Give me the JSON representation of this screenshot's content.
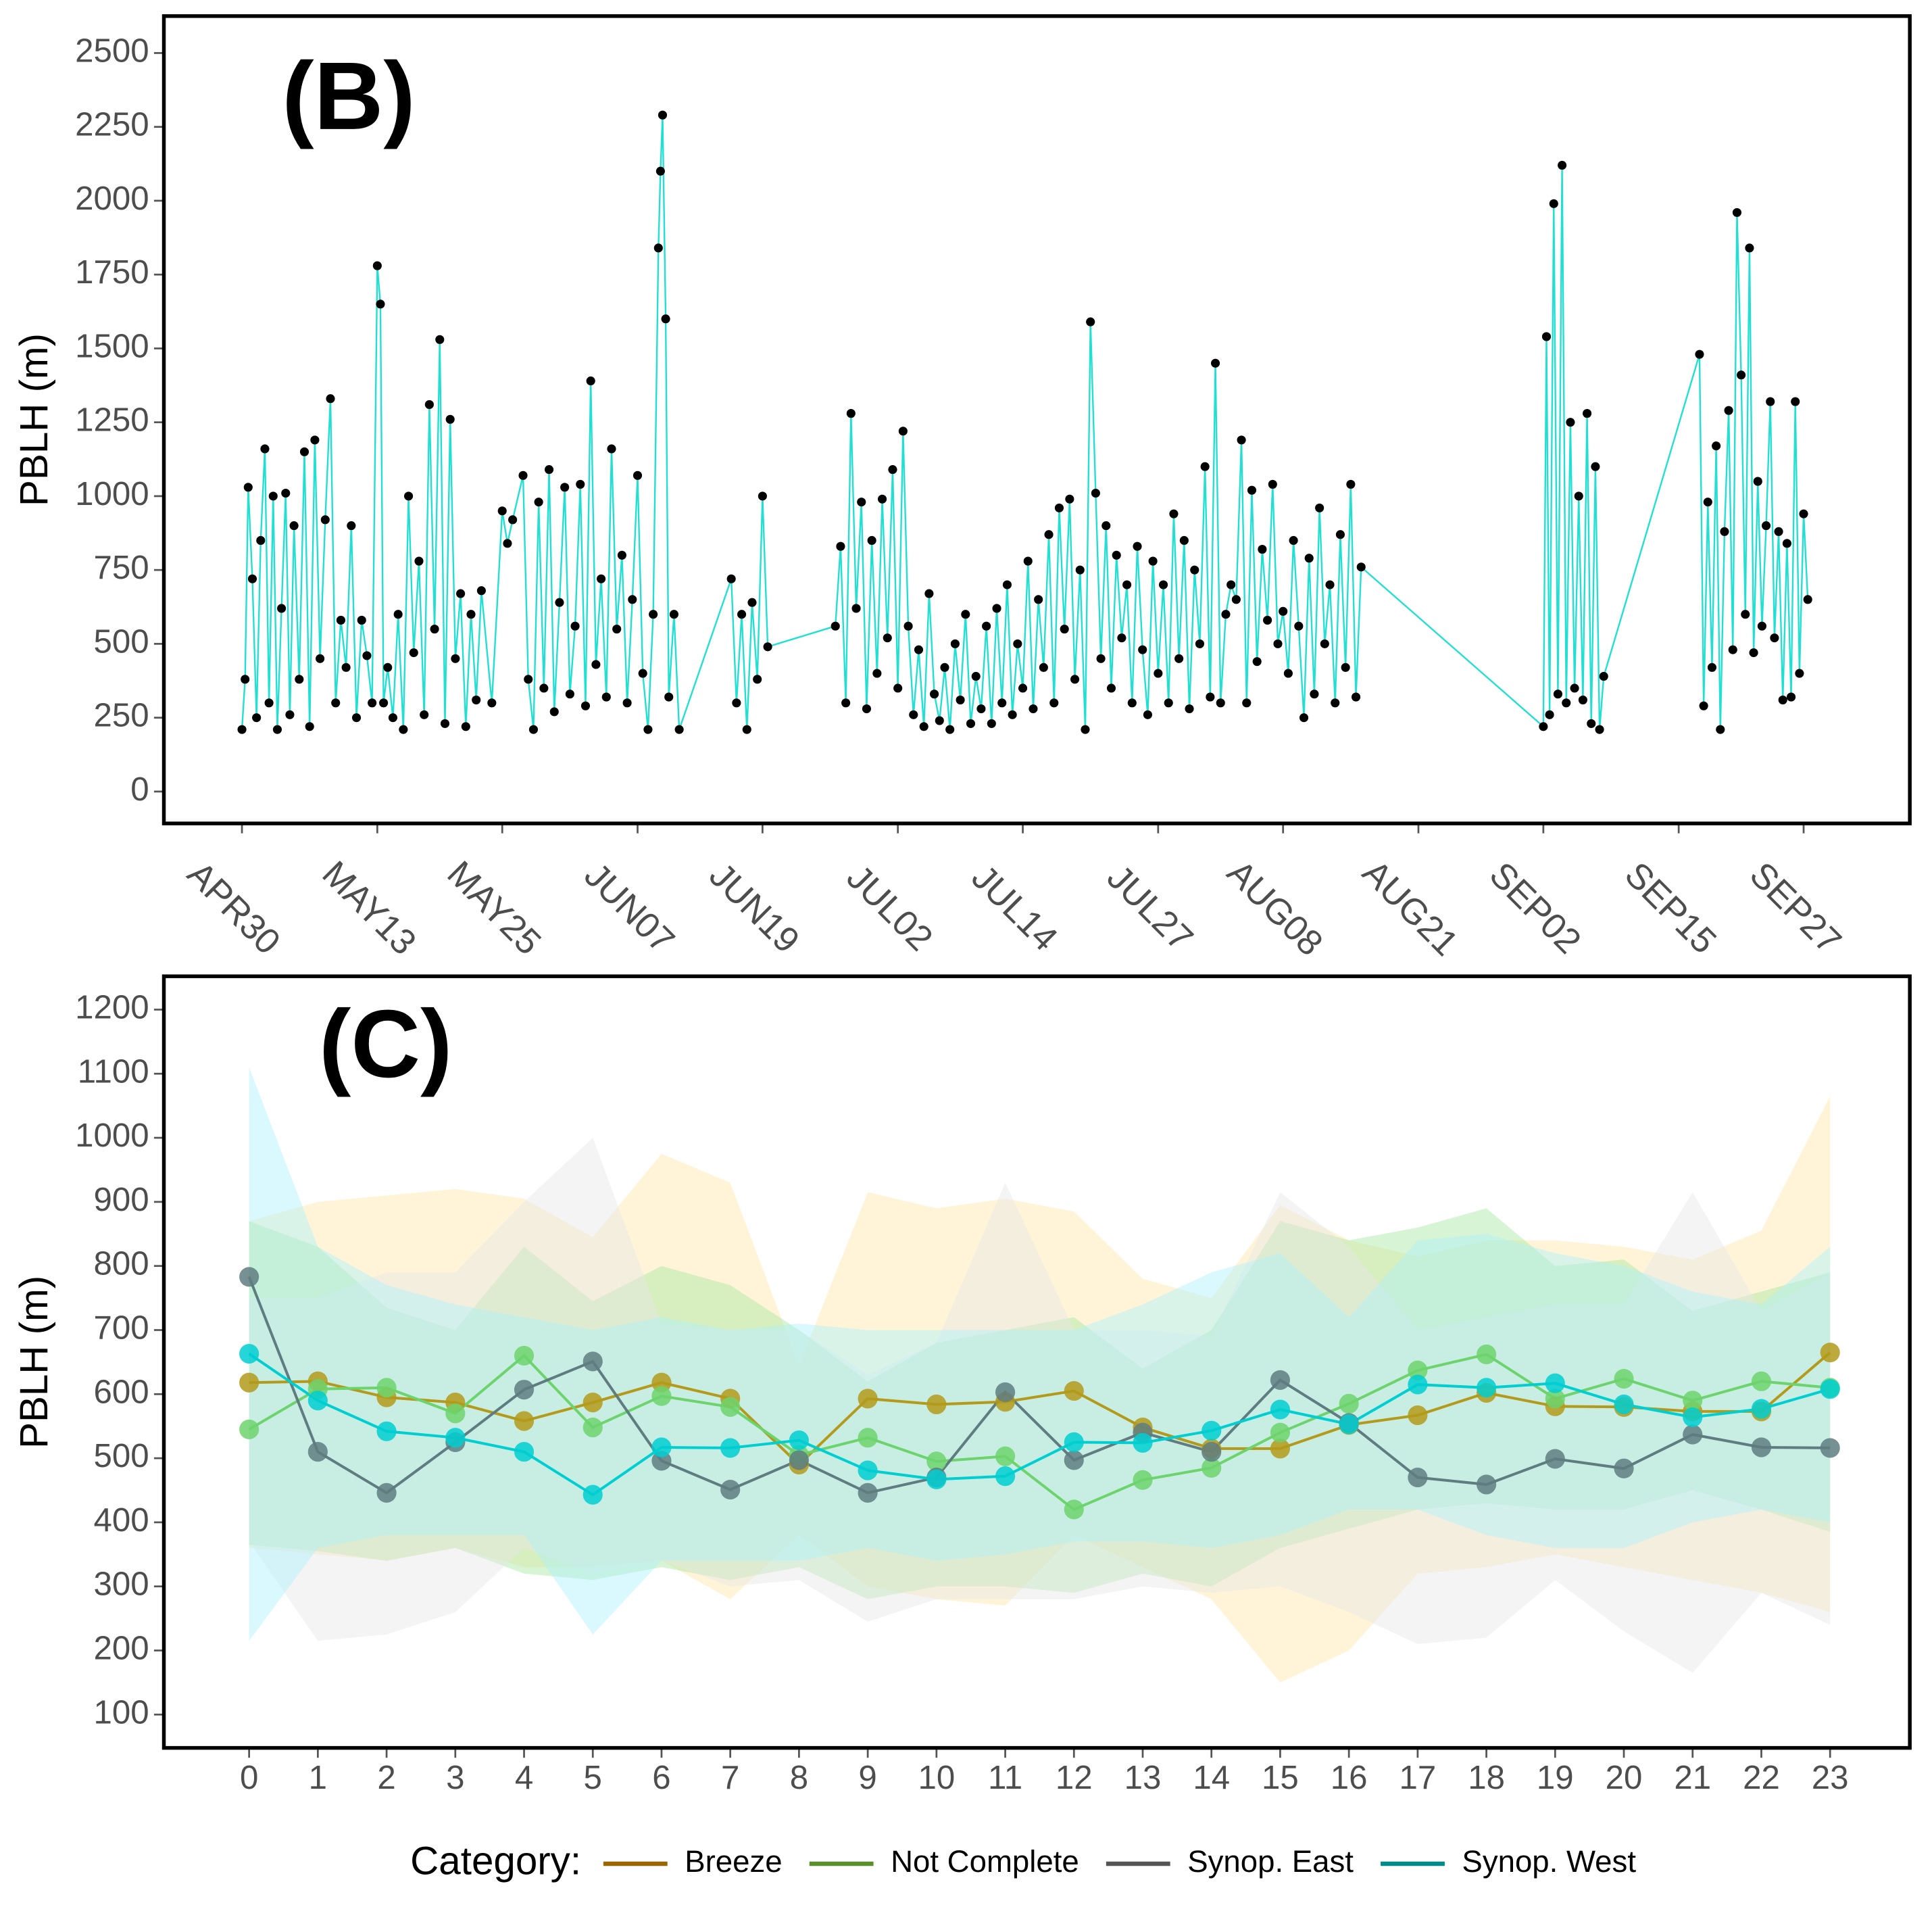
{
  "chart_data": [
    {
      "type": "line",
      "annotation": "(B)",
      "y_label": "PBLH (m)",
      "xlim": [
        -7.5,
        160.2
      ],
      "ylim": [
        -108,
        2625
      ],
      "xticks": [
        {
          "value": 0,
          "label": "APR30"
        },
        {
          "value": 13,
          "label": "MAY13"
        },
        {
          "value": 25,
          "label": "MAY25"
        },
        {
          "value": 38,
          "label": "JUN07"
        },
        {
          "value": 50,
          "label": "JUN19"
        },
        {
          "value": 63,
          "label": "JUL02"
        },
        {
          "value": 75,
          "label": "JUL14"
        },
        {
          "value": 88,
          "label": "JUL27"
        },
        {
          "value": 100,
          "label": "AUG08"
        },
        {
          "value": 113,
          "label": "AUG21"
        },
        {
          "value": 125,
          "label": "SEP02"
        },
        {
          "value": 138,
          "label": "SEP15"
        },
        {
          "value": 150,
          "label": "SEP27"
        }
      ],
      "yticks": [
        0,
        250,
        500,
        750,
        1000,
        1250,
        1500,
        1750,
        2000,
        2250,
        2500
      ],
      "x": [
        0,
        0.3,
        0.6,
        1,
        1.4,
        1.8,
        2.2,
        2.6,
        3,
        3.4,
        3.8,
        4.2,
        4.6,
        5,
        5.5,
        6,
        6.5,
        7,
        7.5,
        8,
        8.5,
        9,
        9.5,
        10,
        10.5,
        11,
        11.5,
        12,
        12.5,
        13,
        13.3,
        13.6,
        14,
        14.5,
        15,
        15.5,
        16,
        16.5,
        17,
        17.5,
        18,
        18.5,
        19,
        19.5,
        20,
        20.5,
        21,
        21.5,
        22,
        22.5,
        23,
        24,
        25,
        25.5,
        26,
        27,
        27.5,
        28,
        28.5,
        29,
        29.5,
        30,
        30.5,
        31,
        31.5,
        32,
        32.5,
        33,
        33.5,
        34,
        34.5,
        35,
        35.5,
        36,
        36.5,
        37,
        37.5,
        38,
        38.5,
        39,
        39.5,
        40,
        40.2,
        40.4,
        40.7,
        41,
        41.5,
        42,
        47,
        47.5,
        48,
        48.5,
        49,
        49.5,
        50,
        50.5,
        57,
        57.5,
        58,
        58.5,
        59,
        59.5,
        60,
        60.5,
        61,
        61.5,
        62,
        62.5,
        63,
        63.5,
        64,
        64.5,
        65,
        65.5,
        66,
        66.5,
        67,
        67.5,
        68,
        68.5,
        69,
        69.5,
        70,
        70.5,
        71,
        71.5,
        72,
        72.5,
        73,
        73.5,
        74,
        74.5,
        75,
        75.5,
        76,
        76.5,
        77,
        77.5,
        78,
        78.5,
        79,
        79.5,
        80,
        80.5,
        81,
        81.5,
        82,
        82.5,
        83,
        83.5,
        84,
        84.5,
        85,
        85.5,
        86,
        86.5,
        87,
        87.5,
        88,
        88.5,
        89,
        89.5,
        90,
        90.5,
        91,
        91.5,
        92,
        92.5,
        93,
        93.5,
        94,
        94.5,
        95,
        95.5,
        96,
        96.5,
        97,
        97.5,
        98,
        98.5,
        99,
        99.5,
        100,
        100.5,
        101,
        101.5,
        102,
        102.5,
        103,
        103.5,
        104,
        104.5,
        105,
        105.5,
        106,
        106.5,
        107,
        107.5,
        125,
        125.3,
        125.6,
        126,
        126.4,
        126.8,
        127.2,
        127.6,
        128,
        128.4,
        128.8,
        129.2,
        129.6,
        130,
        130.4,
        130.8,
        140,
        140.4,
        140.8,
        141.2,
        141.6,
        142,
        142.4,
        142.8,
        143.2,
        143.6,
        144,
        144.4,
        144.8,
        145.2,
        145.6,
        146,
        146.4,
        146.8,
        147.2,
        147.6,
        148,
        148.4,
        148.8,
        149.2,
        149.6,
        150,
        150.4
      ],
      "series": [
        {
          "color": "#1fe0d2",
          "marker_color": "#000000",
          "values": [
            210,
            380,
            1030,
            720,
            250,
            850,
            1160,
            300,
            1000,
            210,
            620,
            1010,
            260,
            900,
            380,
            1150,
            220,
            1190,
            450,
            920,
            1330,
            300,
            580,
            420,
            900,
            250,
            580,
            460,
            300,
            1780,
            1650,
            300,
            420,
            250,
            600,
            210,
            1000,
            470,
            780,
            260,
            1310,
            550,
            1530,
            230,
            1260,
            450,
            670,
            220,
            600,
            310,
            680,
            300,
            950,
            840,
            920,
            1070,
            380,
            210,
            980,
            350,
            1090,
            270,
            640,
            1030,
            330,
            560,
            1040,
            290,
            1390,
            430,
            720,
            320,
            1160,
            550,
            800,
            300,
            650,
            1070,
            400,
            210,
            600,
            1840,
            2100,
            2290,
            1600,
            320,
            600,
            210,
            720,
            300,
            600,
            210,
            640,
            380,
            1000,
            490,
            560,
            830,
            300,
            1280,
            620,
            980,
            280,
            850,
            400,
            990,
            520,
            1090,
            350,
            1220,
            560,
            260,
            480,
            220,
            670,
            330,
            240,
            420,
            210,
            500,
            310,
            600,
            230,
            390,
            280,
            560,
            230,
            620,
            300,
            700,
            260,
            500,
            350,
            780,
            280,
            650,
            420,
            870,
            300,
            960,
            550,
            990,
            380,
            750,
            210,
            1590,
            1010,
            450,
            900,
            350,
            800,
            520,
            700,
            300,
            830,
            480,
            260,
            780,
            400,
            700,
            300,
            940,
            450,
            850,
            280,
            750,
            500,
            1100,
            320,
            1450,
            300,
            600,
            700,
            650,
            1190,
            300,
            1020,
            440,
            820,
            580,
            1040,
            500,
            610,
            400,
            850,
            560,
            250,
            790,
            330,
            960,
            500,
            700,
            300,
            870,
            420,
            1040,
            320,
            760,
            220,
            1540,
            260,
            1990,
            330,
            2120,
            300,
            1250,
            350,
            1000,
            310,
            1280,
            230,
            1100,
            210,
            390,
            1480,
            290,
            980,
            420,
            1170,
            210,
            880,
            1290,
            480,
            1960,
            1410,
            600,
            1840,
            470,
            1050,
            560,
            900,
            1320,
            520,
            880,
            310,
            840,
            320,
            1320,
            400,
            940,
            650
          ]
        }
      ]
    },
    {
      "type": "line",
      "annotation": "(C)",
      "y_label": "PBLH (m)",
      "legend_title": "Category:",
      "xlim": [
        -1.24,
        24.16
      ],
      "ylim": [
        48,
        1252
      ],
      "xticks": [
        0,
        1,
        2,
        3,
        4,
        5,
        6,
        7,
        8,
        9,
        10,
        11,
        12,
        13,
        14,
        15,
        16,
        17,
        18,
        19,
        20,
        21,
        22,
        23
      ],
      "yticks": [
        100,
        200,
        300,
        400,
        500,
        600,
        700,
        800,
        900,
        1000,
        1100,
        1200
      ],
      "x": [
        0,
        1,
        2,
        3,
        4,
        5,
        6,
        7,
        8,
        9,
        10,
        11,
        12,
        13,
        14,
        15,
        16,
        17,
        18,
        19,
        20,
        21,
        22,
        23
      ],
      "series": [
        {
          "name": "Breeze",
          "color": "#b39a1a",
          "legend_color": "#996600",
          "band_color": "#ffe7a8",
          "values": [
            618,
            620,
            595,
            587,
            558,
            587,
            618,
            593,
            490,
            593,
            584,
            588,
            605,
            548,
            515,
            515,
            552,
            567,
            602,
            581,
            580,
            573,
            573,
            665
          ],
          "low": [
            360,
            350,
            340,
            360,
            330,
            330,
            340,
            280,
            380,
            300,
            280,
            270,
            380,
            330,
            280,
            150,
            200,
            320,
            330,
            350,
            330,
            310,
            290,
            260
          ],
          "high": [
            870,
            900,
            910,
            920,
            905,
            845,
            975,
            930,
            645,
            915,
            890,
            905,
            885,
            780,
            750,
            895,
            840,
            815,
            840,
            840,
            830,
            810,
            855,
            1065
          ]
        },
        {
          "name": "Not Complete",
          "color": "#6dd36d",
          "legend_color": "#5b8f2b",
          "band_color": "#a6e6a0",
          "values": [
            545,
            608,
            610,
            570,
            660,
            548,
            597,
            580,
            505,
            532,
            495,
            503,
            420,
            466,
            485,
            540,
            585,
            637,
            662,
            593,
            624,
            590,
            620,
            610
          ],
          "low": [
            365,
            355,
            340,
            360,
            320,
            310,
            330,
            310,
            330,
            280,
            300,
            300,
            290,
            320,
            300,
            360,
            390,
            420,
            430,
            420,
            420,
            450,
            420,
            385
          ],
          "high": [
            870,
            830,
            735,
            700,
            830,
            745,
            800,
            770,
            700,
            620,
            680,
            700,
            720,
            640,
            700,
            870,
            840,
            860,
            890,
            800,
            810,
            730,
            760,
            790
          ]
        },
        {
          "name": "Synop. East",
          "color": "#5f7c80",
          "legend_color": "#555555",
          "band_color": "#e6e6e6",
          "values": [
            783,
            510,
            446,
            525,
            607,
            651,
            496,
            451,
            497,
            446,
            470,
            603,
            497,
            540,
            510,
            622,
            555,
            470,
            459,
            499,
            484,
            537,
            517,
            516
          ],
          "low": [
            370,
            215,
            225,
            260,
            360,
            320,
            340,
            300,
            310,
            245,
            280,
            280,
            280,
            300,
            290,
            300,
            260,
            210,
            220,
            310,
            230,
            165,
            290,
            240
          ],
          "high": [
            750,
            750,
            790,
            790,
            900,
            1000,
            710,
            700,
            700,
            630,
            680,
            930,
            700,
            700,
            690,
            915,
            830,
            700,
            720,
            740,
            740,
            915,
            730,
            790
          ]
        },
        {
          "name": "Synop. West",
          "color": "#00ced1",
          "legend_color": "#008b8b",
          "band_color": "#aef2fc",
          "values": [
            663,
            590,
            542,
            532,
            510,
            443,
            517,
            516,
            528,
            481,
            467,
            472,
            525,
            524,
            543,
            576,
            553,
            615,
            610,
            617,
            584,
            564,
            577,
            608
          ],
          "low": [
            215,
            360,
            380,
            380,
            380,
            225,
            340,
            340,
            340,
            360,
            340,
            350,
            370,
            370,
            360,
            380,
            420,
            420,
            380,
            360,
            360,
            400,
            420,
            400
          ],
          "high": [
            1110,
            830,
            770,
            740,
            720,
            700,
            720,
            700,
            710,
            700,
            700,
            700,
            700,
            740,
            790,
            820,
            720,
            840,
            850,
            820,
            800,
            760,
            740,
            830
          ]
        }
      ]
    }
  ]
}
